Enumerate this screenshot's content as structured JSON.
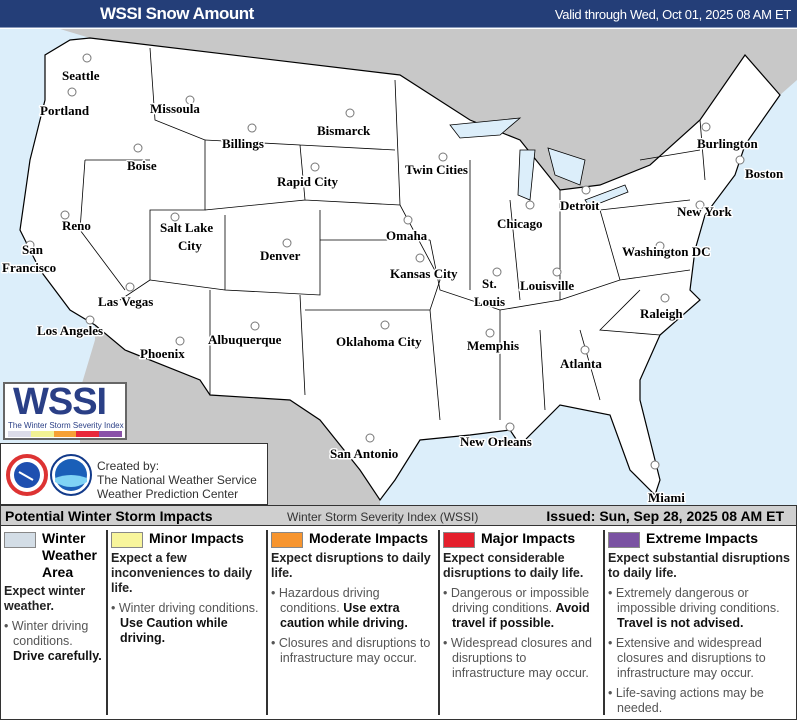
{
  "header": {
    "title": "WSSI Snow Amount",
    "valid": "Valid through Wed, Oct 01, 2025 08 AM ET"
  },
  "map": {
    "colors": {
      "land_us": "#ffffff",
      "land_other": "#c8c8c8",
      "water": "#dceefa"
    },
    "cities": [
      "Seattle",
      "Portland",
      "Missoula",
      "Billings",
      "Bismarck",
      "Boise",
      "Rapid City",
      "Twin Cities",
      "Burlington",
      "Boston",
      "Detroit",
      "Chicago",
      "New York",
      "Reno",
      "Salt Lake",
      "City",
      "Omaha",
      "Denver",
      "Washington DC",
      "San",
      "Francisco",
      "Kansas City",
      "St.",
      "Louis",
      "Louisville",
      "Las Vegas",
      "Los Angeles",
      "Raleigh",
      "Albuquerque",
      "Oklahoma City",
      "Memphis",
      "Phoenix",
      "Atlanta",
      "San Antonio",
      "New Orleans",
      "Miami"
    ]
  },
  "logo": {
    "text": "WSSI",
    "subtitle": "The Winter Storm Severity Index",
    "colors": [
      "#dcdce8",
      "#f2f294",
      "#f7a035",
      "#e8283a",
      "#8a52a8"
    ]
  },
  "credit": {
    "line1": "Created by:",
    "line2": "The National Weather Service",
    "line3": "Weather Prediction Center",
    "logos": [
      "nws-logo",
      "noaa-logo"
    ]
  },
  "legend": {
    "title": "Potential Winter Storm Impacts",
    "center": "Winter Storm Severity Index (WSSI)",
    "issued": "Issued: Sun, Sep 28, 2025 08 AM ET",
    "categories": [
      {
        "name": "Winter Weather Area",
        "color": "#d3dde6",
        "expect": "Expect winter weather.",
        "bullets": [
          [
            "Winter driving conditions. ",
            "Drive carefully."
          ]
        ]
      },
      {
        "name": "Minor Impacts",
        "color": "#f8f59c",
        "expect": "Expect a few inconveniences to daily life.",
        "bullets": [
          [
            "Winter driving conditions. ",
            "Use Caution while driving."
          ]
        ]
      },
      {
        "name": "Moderate Impacts",
        "color": "#f7952f",
        "expect": "Expect disruptions to daily life.",
        "bullets": [
          [
            "Hazardous driving conditions. ",
            "Use extra caution while driving."
          ],
          [
            "Closures and disruptions to infrastructure may occur.",
            ""
          ]
        ]
      },
      {
        "name": "Major Impacts",
        "color": "#e41f2c",
        "expect": "Expect considerable disruptions to daily life.",
        "bullets": [
          [
            "Dangerous or impossible driving conditions. ",
            "Avoid travel if possible."
          ],
          [
            "Widespread closures and disruptions to infrastructure may occur.",
            ""
          ]
        ]
      },
      {
        "name": "Extreme Impacts",
        "color": "#7a52a2",
        "expect": "Expect substantial disruptions to daily life.",
        "bullets": [
          [
            "Extremely dangerous or impossible driving conditions. ",
            "Travel is not advised."
          ],
          [
            "Extensive and widespread closures and disruptions to infrastructure may occur.",
            ""
          ],
          [
            "Life-saving actions may be needed.",
            ""
          ]
        ]
      }
    ]
  }
}
